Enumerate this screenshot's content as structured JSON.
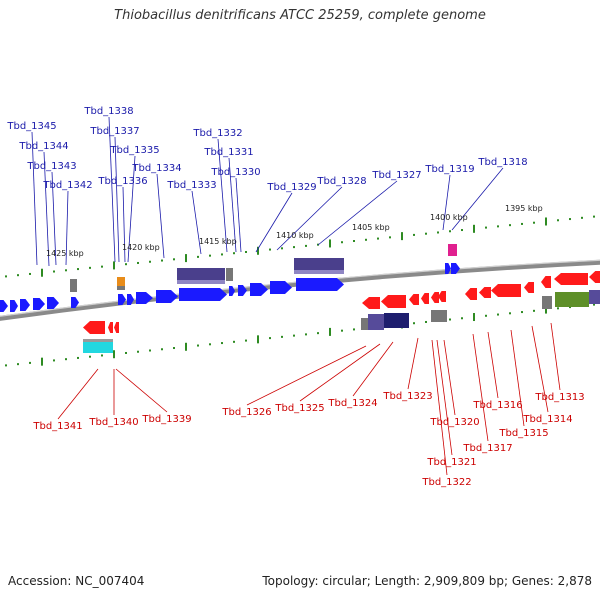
{
  "title": "Thiobacillus denitrificans ATCC 25259, complete genome",
  "accession": "Accession: NC_007404",
  "topology": "Topology: circular; Length: 2,909,809 bp; Genes: 2,878",
  "colors": {
    "forward_gene": "#1a1aff",
    "reverse_gene": "#ff1a1a",
    "forward_label": "#1a1aaa",
    "reverse_label": "#cc0000",
    "tick": "#2e8b22",
    "backbone": "#888888"
  },
  "kbp_markers": [
    "1425 kbp",
    "1420 kbp",
    "1415 kbp",
    "1410 kbp",
    "1405 kbp",
    "1400 kbp",
    "1395 kbp"
  ],
  "forward_labels": [
    "Tbd_1345",
    "Tbd_1344",
    "Tbd_1343",
    "Tbd_1342",
    "Tbd_1338",
    "Tbd_1337",
    "Tbd_1336",
    "Tbd_1335",
    "Tbd_1334",
    "Tbd_1333",
    "Tbd_1332",
    "Tbd_1331",
    "Tbd_1330",
    "Tbd_1329",
    "Tbd_1328",
    "Tbd_1327",
    "Tbd_1319",
    "Tbd_1318"
  ],
  "reverse_labels": [
    "Tbd_1341",
    "Tbd_1340",
    "Tbd_1339",
    "Tbd_1326",
    "Tbd_1325",
    "Tbd_1324",
    "Tbd_1323",
    "Tbd_1322",
    "Tbd_1321",
    "Tbd_1320",
    "Tbd_1317",
    "Tbd_1316",
    "Tbd_1315",
    "Tbd_1314",
    "Tbd_1313"
  ]
}
